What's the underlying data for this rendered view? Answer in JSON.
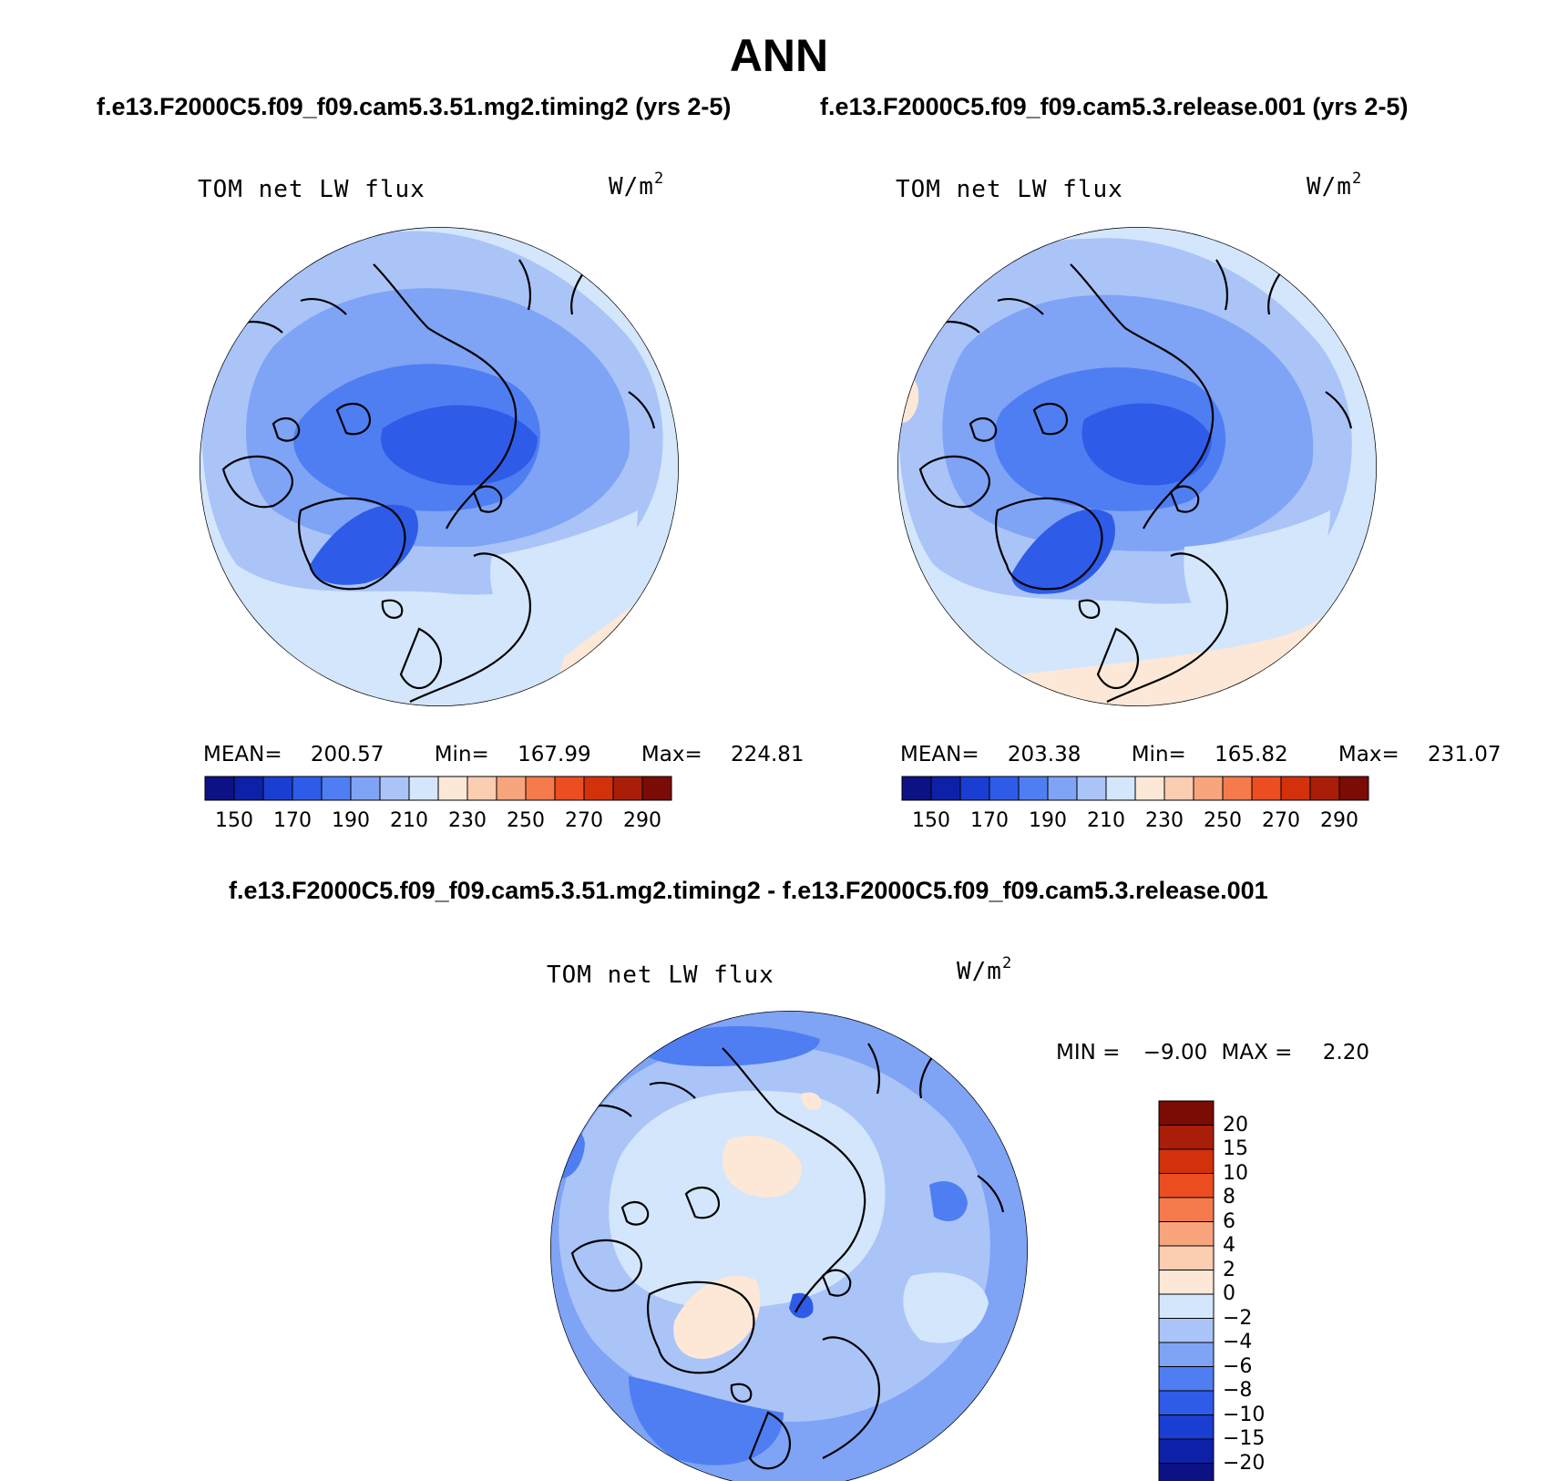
{
  "title": "ANN",
  "panels": [
    {
      "case": "f.e13.F2000C5.f09_f09.cam5.3.51.mg2.timing2 (yrs 2-5)",
      "variable": "TOM net LW flux",
      "units_base": "W/m",
      "units_exp": "2",
      "mean_label": "MEAN=",
      "mean": "200.57",
      "min_label": "Min=",
      "min": "167.99",
      "max_label": "Max=",
      "max": "224.81"
    },
    {
      "case": "f.e13.F2000C5.f09_f09.cam5.3.release.001 (yrs 2-5)",
      "variable": "TOM net LW flux",
      "units_base": "W/m",
      "units_exp": "2",
      "mean_label": "MEAN=",
      "mean": "203.38",
      "min_label": "Min=",
      "min": "165.82",
      "max_label": "Max=",
      "max": "231.07"
    }
  ],
  "diff": {
    "case": "f.e13.F2000C5.f09_f09.cam5.3.51.mg2.timing2 - f.e13.F2000C5.f09_f09.cam5.3.release.001",
    "variable": "TOM net LW flux",
    "units_base": "W/m",
    "units_exp": "2",
    "min_label": "MIN =",
    "min": "−9.00",
    "max_label": "MAX =",
    "max": "2.20"
  },
  "abs_colorbar": {
    "colors": [
      "#0c1184",
      "#0d21a8",
      "#1a3ed1",
      "#2e5ce8",
      "#4f7ef2",
      "#7fa3f5",
      "#aac4f8",
      "#d4e6fb",
      "#fde8d7",
      "#fbcdb1",
      "#f8a47c",
      "#f57b4c",
      "#ec4e22",
      "#d3310c",
      "#a91e08",
      "#7a0b05"
    ],
    "labels": [
      "150",
      "170",
      "190",
      "210",
      "230",
      "250",
      "270",
      "290"
    ]
  },
  "diff_colorbar": {
    "colors": [
      "#0c1184",
      "#0d21a8",
      "#1a3ed1",
      "#2e5ce8",
      "#4f7ef2",
      "#7fa3f5",
      "#aac4f8",
      "#d4e6fb",
      "#fde8d7",
      "#fbcdb1",
      "#f8a47c",
      "#f57b4c",
      "#ec4e22",
      "#d3310c",
      "#a91e08",
      "#7a0b05"
    ],
    "labels": [
      "20",
      "15",
      "10",
      "8",
      "6",
      "4",
      "2",
      "0",
      "−2",
      "−4",
      "−6",
      "−8",
      "−10",
      "−15",
      "−20"
    ]
  },
  "map_colors": {
    "outer": "#aac4f8",
    "mid": "#7fa3f5",
    "inner": "#4f7ef2",
    "deep": "#2e5ce8",
    "pale": "#d4e6fb",
    "warm": "#fde8d7",
    "coast": "#000000"
  }
}
